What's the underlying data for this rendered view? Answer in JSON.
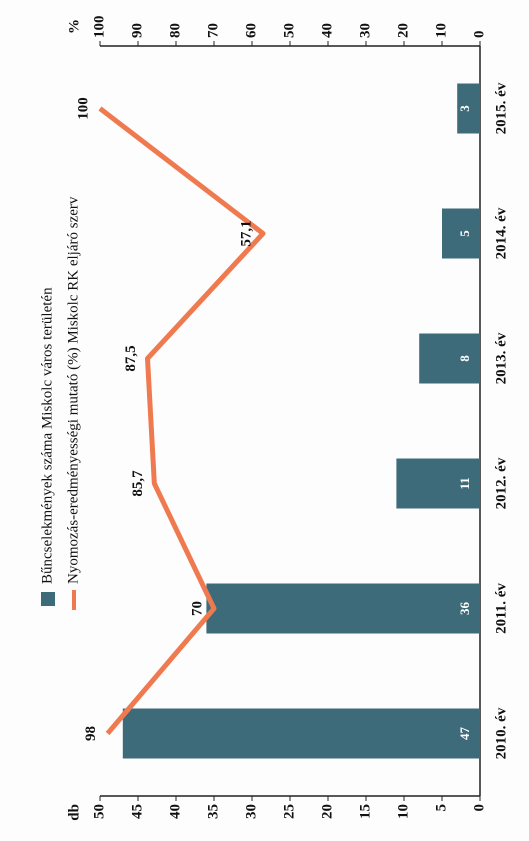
{
  "chart_data": {
    "type": "bar",
    "categories": [
      "2010. év",
      "2011. év",
      "2012. év",
      "2013. év",
      "2014. év",
      "2015. év"
    ],
    "series": [
      {
        "name": "Bűncselekmények száma Miskolc város területén",
        "color": "#3e6b7a",
        "type": "bar",
        "values": [
          47,
          36,
          11,
          8,
          5,
          3
        ]
      },
      {
        "name": "Nyomozás-eredményességi mutató (%) Miskolc RK eljáró szerv",
        "color": "#f07a50",
        "type": "line",
        "axis": "y2",
        "values": [
          98,
          70,
          85.7,
          87.5,
          57.1,
          100
        ],
        "value_labels": [
          "98",
          "70",
          "85,7",
          "87,5",
          "57,1",
          "100"
        ]
      }
    ],
    "ylabel": "db",
    "y2label": "%",
    "ylim": [
      0,
      50
    ],
    "yticks": [
      0,
      5,
      10,
      15,
      20,
      25,
      30,
      35,
      40,
      45,
      50
    ],
    "y2lim": [
      0,
      100
    ],
    "y2ticks": [
      0,
      10,
      20,
      30,
      40,
      50,
      60,
      70,
      80,
      90,
      100
    ]
  }
}
